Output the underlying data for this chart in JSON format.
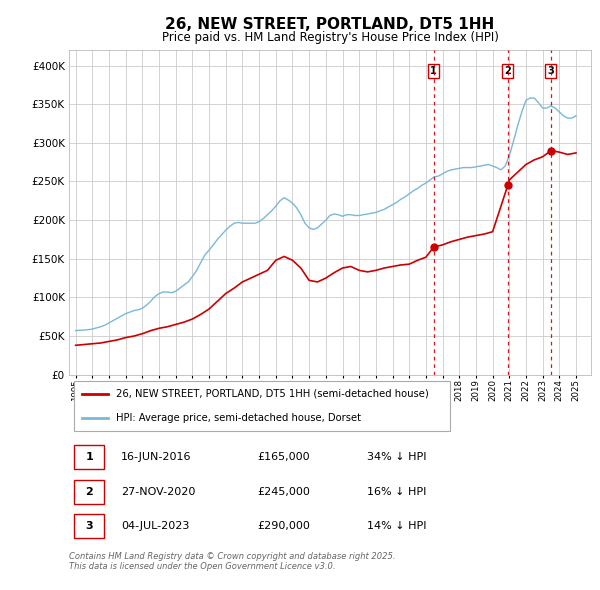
{
  "title": "26, NEW STREET, PORTLAND, DT5 1HH",
  "subtitle": "Price paid vs. HM Land Registry's House Price Index (HPI)",
  "title_fontsize": 11,
  "subtitle_fontsize": 8.5,
  "background_color": "#ffffff",
  "plot_bg_color": "#ffffff",
  "grid_color": "#cccccc",
  "hpi_color": "#7ab8d9",
  "price_color": "#cc0000",
  "ylim": [
    0,
    420000
  ],
  "yticks": [
    0,
    50000,
    100000,
    150000,
    200000,
    250000,
    300000,
    350000,
    400000
  ],
  "marker_sale_dates": [
    2016.46,
    2020.91,
    2023.5
  ],
  "marker_sale_prices": [
    165000,
    245000,
    290000
  ],
  "vline_dates": [
    2016.46,
    2020.91,
    2023.5
  ],
  "vline_labels": [
    "1",
    "2",
    "3"
  ],
  "sale_table": [
    {
      "num": "1",
      "date": "16-JUN-2016",
      "price": "£165,000",
      "hpi": "34% ↓ HPI"
    },
    {
      "num": "2",
      "date": "27-NOV-2020",
      "price": "£245,000",
      "hpi": "16% ↓ HPI"
    },
    {
      "num": "3",
      "date": "04-JUL-2023",
      "price": "£290,000",
      "hpi": "14% ↓ HPI"
    }
  ],
  "legend_entries": [
    "26, NEW STREET, PORTLAND, DT5 1HH (semi-detached house)",
    "HPI: Average price, semi-detached house, Dorset"
  ],
  "footnote": "Contains HM Land Registry data © Crown copyright and database right 2025.\nThis data is licensed under the Open Government Licence v3.0.",
  "hpi_data": {
    "years": [
      1995.0,
      1995.25,
      1995.5,
      1995.75,
      1996.0,
      1996.25,
      1996.5,
      1996.75,
      1997.0,
      1997.25,
      1997.5,
      1997.75,
      1998.0,
      1998.25,
      1998.5,
      1998.75,
      1999.0,
      1999.25,
      1999.5,
      1999.75,
      2000.0,
      2000.25,
      2000.5,
      2000.75,
      2001.0,
      2001.25,
      2001.5,
      2001.75,
      2002.0,
      2002.25,
      2002.5,
      2002.75,
      2003.0,
      2003.25,
      2003.5,
      2003.75,
      2004.0,
      2004.25,
      2004.5,
      2004.75,
      2005.0,
      2005.25,
      2005.5,
      2005.75,
      2006.0,
      2006.25,
      2006.5,
      2006.75,
      2007.0,
      2007.25,
      2007.5,
      2007.75,
      2008.0,
      2008.25,
      2008.5,
      2008.75,
      2009.0,
      2009.25,
      2009.5,
      2009.75,
      2010.0,
      2010.25,
      2010.5,
      2010.75,
      2011.0,
      2011.25,
      2011.5,
      2011.75,
      2012.0,
      2012.25,
      2012.5,
      2012.75,
      2013.0,
      2013.25,
      2013.5,
      2013.75,
      2014.0,
      2014.25,
      2014.5,
      2014.75,
      2015.0,
      2015.25,
      2015.5,
      2015.75,
      2016.0,
      2016.25,
      2016.5,
      2016.75,
      2017.0,
      2017.25,
      2017.5,
      2017.75,
      2018.0,
      2018.25,
      2018.5,
      2018.75,
      2019.0,
      2019.25,
      2019.5,
      2019.75,
      2020.0,
      2020.25,
      2020.5,
      2020.75,
      2021.0,
      2021.25,
      2021.5,
      2021.75,
      2022.0,
      2022.25,
      2022.5,
      2022.75,
      2023.0,
      2023.25,
      2023.5,
      2023.75,
      2024.0,
      2024.25,
      2024.5,
      2024.75,
      2025.0
    ],
    "values": [
      57000,
      57500,
      57800,
      58200,
      59000,
      60500,
      62000,
      64000,
      67000,
      70000,
      73000,
      76000,
      79000,
      81000,
      83000,
      84000,
      86000,
      90000,
      95000,
      101000,
      105000,
      107000,
      107000,
      106000,
      108000,
      112000,
      116000,
      120000,
      127000,
      135000,
      145000,
      155000,
      161000,
      168000,
      175000,
      181000,
      187000,
      192000,
      196000,
      197000,
      196000,
      196000,
      196000,
      196000,
      198000,
      202000,
      207000,
      212000,
      218000,
      225000,
      229000,
      226000,
      222000,
      216000,
      207000,
      196000,
      190000,
      188000,
      190000,
      195000,
      200000,
      206000,
      208000,
      207000,
      205000,
      207000,
      207000,
      206000,
      206000,
      207000,
      208000,
      209000,
      210000,
      212000,
      214000,
      217000,
      220000,
      223000,
      227000,
      230000,
      234000,
      238000,
      241000,
      245000,
      248000,
      252000,
      256000,
      257000,
      260000,
      263000,
      265000,
      266000,
      267000,
      268000,
      268000,
      268000,
      269000,
      270000,
      271000,
      272000,
      270000,
      268000,
      265000,
      270000,
      283000,
      302000,
      322000,
      340000,
      355000,
      358000,
      358000,
      352000,
      345000,
      345000,
      348000,
      345000,
      340000,
      335000,
      332000,
      332000,
      335000
    ]
  },
  "price_data": {
    "years": [
      1995.0,
      1995.5,
      1996.0,
      1996.5,
      1997.0,
      1997.5,
      1998.0,
      1998.5,
      1999.0,
      1999.5,
      2000.0,
      2000.5,
      2001.0,
      2001.5,
      2002.0,
      2002.5,
      2003.0,
      2003.5,
      2004.0,
      2004.5,
      2005.0,
      2005.5,
      2006.0,
      2006.5,
      2007.0,
      2007.5,
      2008.0,
      2008.5,
      2009.0,
      2009.5,
      2010.0,
      2010.5,
      2011.0,
      2011.5,
      2012.0,
      2012.5,
      2013.0,
      2013.5,
      2014.0,
      2014.5,
      2015.0,
      2015.5,
      2016.0,
      2016.46,
      2017.0,
      2017.5,
      2018.0,
      2018.5,
      2019.0,
      2019.5,
      2020.0,
      2020.91,
      2021.0,
      2021.5,
      2022.0,
      2022.5,
      2023.0,
      2023.5,
      2024.0,
      2024.5,
      2025.0
    ],
    "values": [
      38000,
      39000,
      40000,
      41000,
      43000,
      45000,
      48000,
      50000,
      53000,
      57000,
      60000,
      62000,
      65000,
      68000,
      72000,
      78000,
      85000,
      95000,
      105000,
      112000,
      120000,
      125000,
      130000,
      135000,
      148000,
      153000,
      148000,
      138000,
      122000,
      120000,
      125000,
      132000,
      138000,
      140000,
      135000,
      133000,
      135000,
      138000,
      140000,
      142000,
      143000,
      148000,
      152000,
      165000,
      168000,
      172000,
      175000,
      178000,
      180000,
      182000,
      185000,
      245000,
      252000,
      262000,
      272000,
      278000,
      282000,
      290000,
      288000,
      285000,
      287000
    ]
  }
}
